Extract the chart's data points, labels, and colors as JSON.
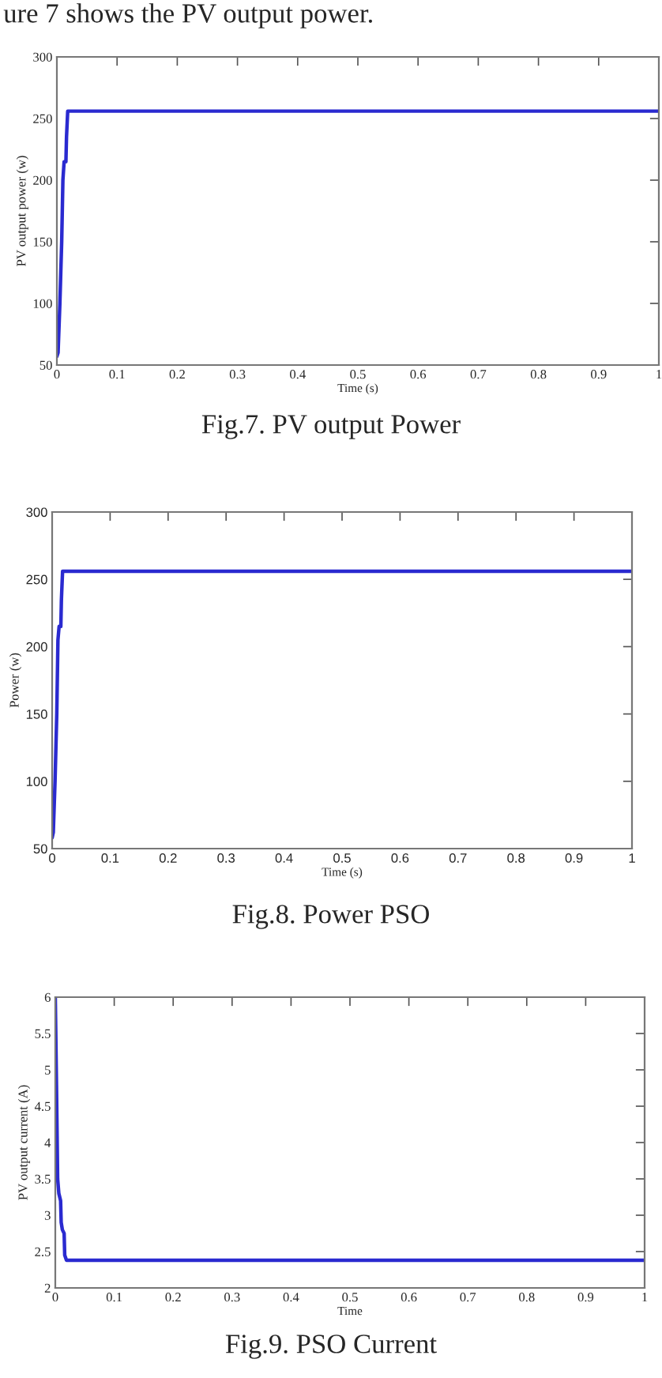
{
  "chart_data": [
    {
      "type": "line",
      "xlabel": "Time (s)",
      "ylabel": "PV output power (w)",
      "annotations": [
        "ure 7 shows the PV output power.",
        "Fig.7. PV output Power"
      ],
      "x": [
        0,
        0.002,
        0.005,
        0.008,
        0.01,
        0.012,
        0.015,
        0.016,
        0.018,
        1
      ],
      "series": [
        {
          "color": "#2a2ad0",
          "values": [
            57,
            60,
            100,
            150,
            200,
            215,
            215,
            235,
            256,
            256
          ]
        }
      ],
      "xlim": [
        0,
        1
      ],
      "ylim": [
        50,
        300
      ],
      "xticks": [
        0,
        0.1,
        0.2,
        0.3,
        0.4,
        0.5,
        0.6,
        0.7,
        0.8,
        0.9,
        1
      ],
      "yticks": [
        50,
        100,
        150,
        200,
        250,
        300
      ],
      "grid": false,
      "legend": false,
      "marker": "none",
      "line_style": "solid"
    },
    {
      "type": "line",
      "xlabel": "Time (s)",
      "ylabel": "Power (w)",
      "annotations": [
        "Fig.8. Power PSO"
      ],
      "x": [
        0,
        0.002,
        0.005,
        0.008,
        0.01,
        0.012,
        0.015,
        0.016,
        0.018,
        1
      ],
      "series": [
        {
          "color": "#2a2ad0",
          "values": [
            58,
            62,
            100,
            150,
            205,
            215,
            215,
            235,
            256,
            256
          ]
        }
      ],
      "xlim": [
        0,
        1
      ],
      "ylim": [
        50,
        300
      ],
      "xticks": [
        0,
        0.1,
        0.2,
        0.3,
        0.4,
        0.5,
        0.6,
        0.7,
        0.8,
        0.9,
        1
      ],
      "yticks": [
        50,
        100,
        150,
        200,
        250,
        300
      ],
      "grid": false,
      "legend": false,
      "marker": "none",
      "line_style": "solid"
    },
    {
      "type": "line",
      "xlabel": "Time",
      "ylabel": "PV output current (A)",
      "annotations": [
        "Fig.9. PSO Current"
      ],
      "x": [
        0,
        0.002,
        0.004,
        0.006,
        0.009,
        0.01,
        0.012,
        0.015,
        0.016,
        0.019,
        1
      ],
      "series": [
        {
          "color": "#2a2ad0",
          "values": [
            6,
            4.8,
            3.5,
            3.3,
            3.2,
            2.9,
            2.8,
            2.75,
            2.45,
            2.38,
            2.38
          ]
        }
      ],
      "xlim": [
        0,
        1
      ],
      "ylim": [
        2,
        6
      ],
      "xticks": [
        0,
        0.1,
        0.2,
        0.3,
        0.4,
        0.5,
        0.6,
        0.7,
        0.8,
        0.9,
        1
      ],
      "yticks": [
        2,
        2.5,
        3,
        3.5,
        4,
        4.5,
        5,
        5.5,
        6
      ],
      "grid": false,
      "legend": false,
      "marker": "none",
      "line_style": "solid"
    }
  ]
}
